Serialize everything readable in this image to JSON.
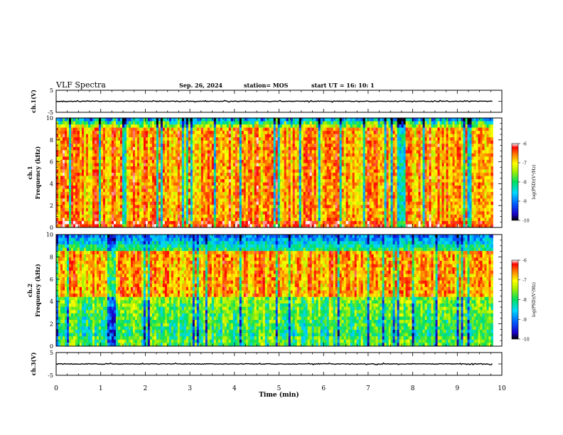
{
  "header": {
    "title": "VLF Spectra",
    "date": "Sep. 26, 2024",
    "station": "station= MOS",
    "start_ut": "start  UT =   16: 10: 1"
  },
  "chart_data": [
    {
      "type": "line",
      "panel": "ch1-amplitude",
      "ylabel": "ch.1(V)",
      "ylim": [
        -5,
        5
      ],
      "yticks": [
        "5",
        "-5"
      ],
      "xlim": [
        0,
        10
      ],
      "x": [
        0,
        9.8
      ],
      "y": [
        0,
        0
      ]
    },
    {
      "type": "heatmap",
      "panel": "ch1-spectrogram",
      "ylabel": "ch.1\nFrequency (kHz)",
      "ylim": [
        0,
        10
      ],
      "yticks": [
        "0",
        "2",
        "4",
        "6",
        "8",
        "10"
      ],
      "xlim": [
        0,
        10
      ],
      "data_extent_min": 9.8,
      "colorbar": {
        "label": "log(PSD)(V²/Hz)",
        "range": [
          -10,
          -6
        ],
        "ticks": [
          "-6",
          "-7",
          "-8",
          "-9",
          "-10"
        ]
      }
    },
    {
      "type": "heatmap",
      "panel": "ch2-spectrogram",
      "ylabel": "ch.2\nFrequency (kHz)",
      "ylim": [
        0,
        10
      ],
      "yticks": [
        "0",
        "2",
        "4",
        "6",
        "8",
        "10"
      ],
      "xlim": [
        0,
        10
      ],
      "data_extent_min": 9.8,
      "colorbar": {
        "label": "log(PSD)(V²/Hz)",
        "range": [
          -10,
          -6
        ],
        "ticks": [
          "-6",
          "-7",
          "-8",
          "-9",
          "-10"
        ]
      }
    },
    {
      "type": "line",
      "panel": "ch3-amplitude",
      "ylabel": "ch.3(V)",
      "ylim": [
        -5,
        5
      ],
      "yticks": [
        "5",
        "-5"
      ],
      "xlim": [
        0,
        10
      ],
      "x": [
        0,
        9.8
      ],
      "y": [
        0,
        0
      ]
    }
  ],
  "x_axis": {
    "label": "Time (min)",
    "ticks": [
      "0",
      "1",
      "2",
      "3",
      "4",
      "5",
      "6",
      "7",
      "8",
      "9",
      "10"
    ]
  }
}
